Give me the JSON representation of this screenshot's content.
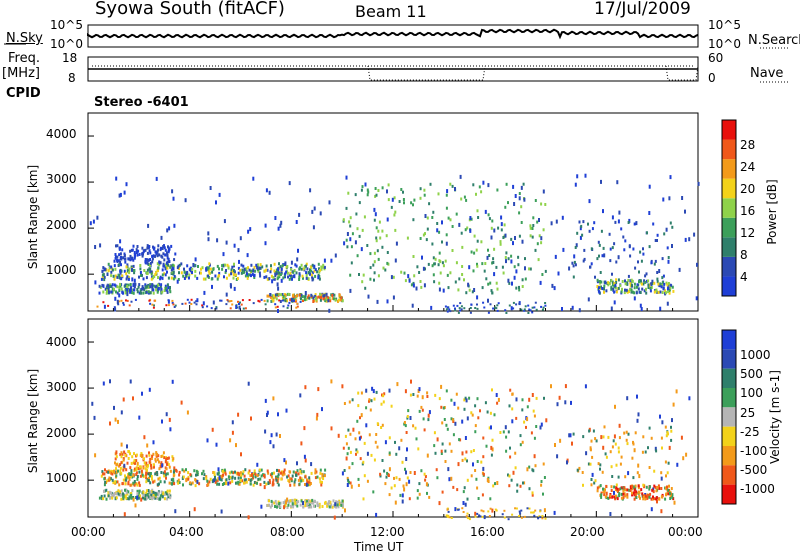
{
  "header": {
    "station": "Syowa South (fitACF)",
    "beam": "Beam 11",
    "date": "17/Jul/2009"
  },
  "left_labels": {
    "nsky": "N.Sky",
    "freq": "Freq.",
    "freq_unit": "[MHz]",
    "cpid": "CPID"
  },
  "right_labels": {
    "nsearch": "N.Search",
    "nave": "Nave"
  },
  "mode_label": "Stereo -6401",
  "noise_panel": {
    "left_ticks": [
      "10^5",
      "10^0"
    ],
    "right_ticks": [
      "10^5",
      "10^0"
    ]
  },
  "freq_panel": {
    "left_ticks": [
      "18",
      "8"
    ],
    "right_ticks": [
      "60",
      "0"
    ]
  },
  "colors": {
    "power": [
      "#1f3fd6",
      "#2b49b4",
      "#2f7f6b",
      "#3c9f5a",
      "#8fd24a",
      "#f3d21a",
      "#f39a1a",
      "#f0581a",
      "#e8100c"
    ],
    "velocity": [
      "#1f3fd6",
      "#2b49b4",
      "#2f7f6b",
      "#3c9f5a",
      "#b5b5b5",
      "#f3d21a",
      "#f39a1a",
      "#f0581a",
      "#e8100c"
    ]
  },
  "chart_data": [
    {
      "type": "heatmap",
      "name": "power",
      "xlabel": "",
      "ylabel": "Slant Range [km]",
      "xlim": [
        0,
        24
      ],
      "ylim": [
        200,
        4500
      ],
      "y_ticks": [
        "1000",
        "2000",
        "3000",
        "4000"
      ],
      "colorbar": {
        "label": "Power [dB]",
        "ticks": [
          "4",
          "8",
          "12",
          "16",
          "20",
          "24",
          "28"
        ]
      }
    },
    {
      "type": "heatmap",
      "name": "velocity",
      "xlabel": "Time UT",
      "ylabel": "Slant Range [km]",
      "xlim": [
        0,
        24
      ],
      "ylim": [
        200,
        4500
      ],
      "x_ticks": [
        "00:00",
        "04:00",
        "08:00",
        "12:00",
        "16:00",
        "20:00",
        "00:00"
      ],
      "y_ticks": [
        "1000",
        "2000",
        "3000",
        "4000"
      ],
      "colorbar": {
        "label": "Velocity [m s-1]",
        "ticks": [
          "1000",
          "500",
          "100",
          "25",
          "-25",
          "-100",
          "-500",
          "-1000"
        ]
      }
    }
  ]
}
